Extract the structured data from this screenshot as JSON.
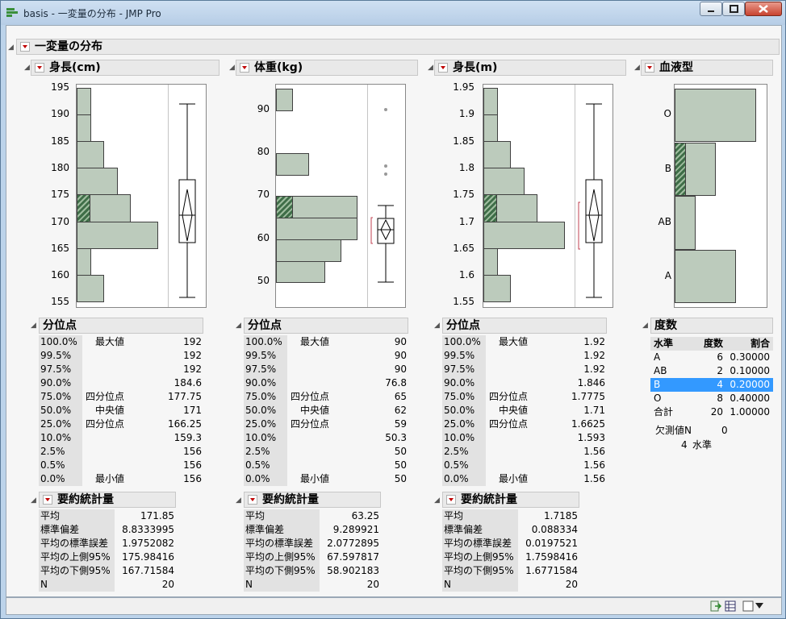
{
  "window": {
    "title": "basis - 一変量の分布 - JMP Pro"
  },
  "main_header": "一変量の分布",
  "panels": {
    "height_cm": {
      "title": "身長(cm)",
      "ticks": [
        "195",
        "190",
        "185",
        "180",
        "175",
        "170",
        "165",
        "160",
        "155"
      ],
      "quantiles_title": "分位点",
      "quantiles": [
        {
          "p": "100.0%",
          "label": "最大値",
          "v": "192"
        },
        {
          "p": "99.5%",
          "label": "",
          "v": "192"
        },
        {
          "p": "97.5%",
          "label": "",
          "v": "192"
        },
        {
          "p": "90.0%",
          "label": "",
          "v": "184.6"
        },
        {
          "p": "75.0%",
          "label": "四分位点",
          "v": "177.75"
        },
        {
          "p": "50.0%",
          "label": "中央値",
          "v": "171"
        },
        {
          "p": "25.0%",
          "label": "四分位点",
          "v": "166.25"
        },
        {
          "p": "10.0%",
          "label": "",
          "v": "159.3"
        },
        {
          "p": "2.5%",
          "label": "",
          "v": "156"
        },
        {
          "p": "0.5%",
          "label": "",
          "v": "156"
        },
        {
          "p": "0.0%",
          "label": "最小値",
          "v": "156"
        }
      ],
      "summary_title": "要約統計量",
      "summary": [
        {
          "k": "平均",
          "v": "171.85"
        },
        {
          "k": "標準偏差",
          "v": "8.8333995"
        },
        {
          "k": "平均の標準誤差",
          "v": "1.9752082"
        },
        {
          "k": "平均の上側95%",
          "v": "175.98416"
        },
        {
          "k": "平均の下側95%",
          "v": "167.71584"
        },
        {
          "k": "N",
          "v": "20"
        }
      ]
    },
    "weight_kg": {
      "title": "体重(kg)",
      "ticks": [
        "90",
        "80",
        "70",
        "60",
        "50"
      ],
      "quantiles_title": "分位点",
      "quantiles": [
        {
          "p": "100.0%",
          "label": "最大値",
          "v": "90"
        },
        {
          "p": "99.5%",
          "label": "",
          "v": "90"
        },
        {
          "p": "97.5%",
          "label": "",
          "v": "90"
        },
        {
          "p": "90.0%",
          "label": "",
          "v": "76.8"
        },
        {
          "p": "75.0%",
          "label": "四分位点",
          "v": "65"
        },
        {
          "p": "50.0%",
          "label": "中央値",
          "v": "62"
        },
        {
          "p": "25.0%",
          "label": "四分位点",
          "v": "59"
        },
        {
          "p": "10.0%",
          "label": "",
          "v": "50.3"
        },
        {
          "p": "2.5%",
          "label": "",
          "v": "50"
        },
        {
          "p": "0.5%",
          "label": "",
          "v": "50"
        },
        {
          "p": "0.0%",
          "label": "最小値",
          "v": "50"
        }
      ],
      "summary_title": "要約統計量",
      "summary": [
        {
          "k": "平均",
          "v": "63.25"
        },
        {
          "k": "標準偏差",
          "v": "9.289921"
        },
        {
          "k": "平均の標準誤差",
          "v": "2.0772895"
        },
        {
          "k": "平均の上側95%",
          "v": "67.597817"
        },
        {
          "k": "平均の下側95%",
          "v": "58.902183"
        },
        {
          "k": "N",
          "v": "20"
        }
      ]
    },
    "height_m": {
      "title": "身長(m)",
      "ticks": [
        "1.95",
        "1.9",
        "1.85",
        "1.8",
        "1.75",
        "1.7",
        "1.65",
        "1.6",
        "1.55"
      ],
      "quantiles_title": "分位点",
      "quantiles": [
        {
          "p": "100.0%",
          "label": "最大値",
          "v": "1.92"
        },
        {
          "p": "99.5%",
          "label": "",
          "v": "1.92"
        },
        {
          "p": "97.5%",
          "label": "",
          "v": "1.92"
        },
        {
          "p": "90.0%",
          "label": "",
          "v": "1.846"
        },
        {
          "p": "75.0%",
          "label": "四分位点",
          "v": "1.7775"
        },
        {
          "p": "50.0%",
          "label": "中央値",
          "v": "1.71"
        },
        {
          "p": "25.0%",
          "label": "四分位点",
          "v": "1.6625"
        },
        {
          "p": "10.0%",
          "label": "",
          "v": "1.593"
        },
        {
          "p": "2.5%",
          "label": "",
          "v": "1.56"
        },
        {
          "p": "0.5%",
          "label": "",
          "v": "1.56"
        },
        {
          "p": "0.0%",
          "label": "最小値",
          "v": "1.56"
        }
      ],
      "summary_title": "要約統計量",
      "summary": [
        {
          "k": "平均",
          "v": "1.7185"
        },
        {
          "k": "標準偏差",
          "v": "0.088334"
        },
        {
          "k": "平均の標準誤差",
          "v": "0.0197521"
        },
        {
          "k": "平均の上側95%",
          "v": "1.7598416"
        },
        {
          "k": "平均の下側95%",
          "v": "1.6771584"
        },
        {
          "k": "N",
          "v": "20"
        }
      ]
    },
    "blood": {
      "title": "血液型",
      "levels": [
        "O",
        "B",
        "AB",
        "A"
      ],
      "freq_title": "度数",
      "freq_headers": [
        "水準",
        "度数",
        "割合"
      ],
      "freq_rows": [
        {
          "lvl": "A",
          "n": "6",
          "pct": "0.30000"
        },
        {
          "lvl": "AB",
          "n": "2",
          "pct": "0.10000"
        },
        {
          "lvl": "B",
          "n": "4",
          "pct": "0.20000"
        },
        {
          "lvl": "O",
          "n": "8",
          "pct": "0.40000"
        },
        {
          "lvl": "合計",
          "n": "20",
          "pct": "1.00000"
        }
      ],
      "missing_label": "欠測値N",
      "missing_value": "0",
      "levels_count": "4",
      "levels_label": "水準"
    }
  }
}
